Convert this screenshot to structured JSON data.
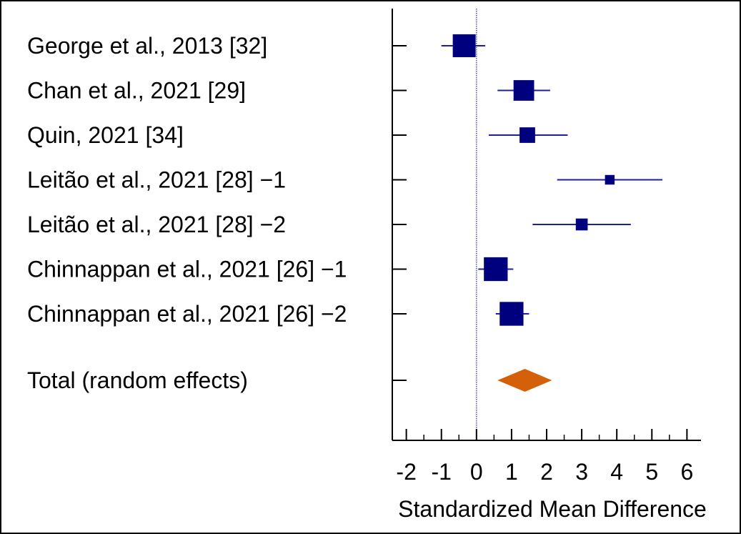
{
  "chart_data": {
    "type": "forest",
    "xlabel": "Standardized Mean Difference",
    "xlim": [
      -2.4,
      6.4
    ],
    "x_ticks": [
      "-2",
      "-1",
      "0",
      "1",
      "2",
      "3",
      "4",
      "5",
      "6"
    ],
    "x_tick_values": [
      -2,
      -1,
      0,
      1,
      2,
      3,
      4,
      5,
      6
    ],
    "minor_tick_step": 0.5,
    "reference_line": 0,
    "studies": [
      {
        "label": "George et al., 2013 [32]",
        "smd": -0.35,
        "ci": [
          -1.0,
          0.25
        ],
        "weight": 1.0
      },
      {
        "label": "Chan et al., 2021 [29]",
        "smd": 1.35,
        "ci": [
          0.6,
          2.1
        ],
        "weight": 0.9
      },
      {
        "label": "Quin, 2021 [34]",
        "smd": 1.45,
        "ci": [
          0.35,
          2.6
        ],
        "weight": 0.68
      },
      {
        "label": "Leitão et al., 2021 [28] −1",
        "smd": 3.8,
        "ci": [
          2.3,
          5.3
        ],
        "weight": 0.42
      },
      {
        "label": "Leitão et al., 2021 [28] −2",
        "smd": 3.0,
        "ci": [
          1.6,
          4.4
        ],
        "weight": 0.52
      },
      {
        "label": "Chinnappan et al., 2021 [26] −1",
        "smd": 0.55,
        "ci": [
          0.05,
          1.05
        ],
        "weight": 1.04
      },
      {
        "label": "Chinnappan et al., 2021 [26] −2",
        "smd": 1.0,
        "ci": [
          0.55,
          1.5
        ],
        "weight": 1.04
      }
    ],
    "total": {
      "label": "Total (random effects)",
      "smd": 1.38,
      "ci": [
        0.6,
        2.15
      ]
    },
    "colors": {
      "marker": "#00007f",
      "ci_line": "#1f1fa0",
      "total_diamond": "#d4600a",
      "reference_line": "#2a2ab0",
      "axis": "#000000"
    }
  }
}
